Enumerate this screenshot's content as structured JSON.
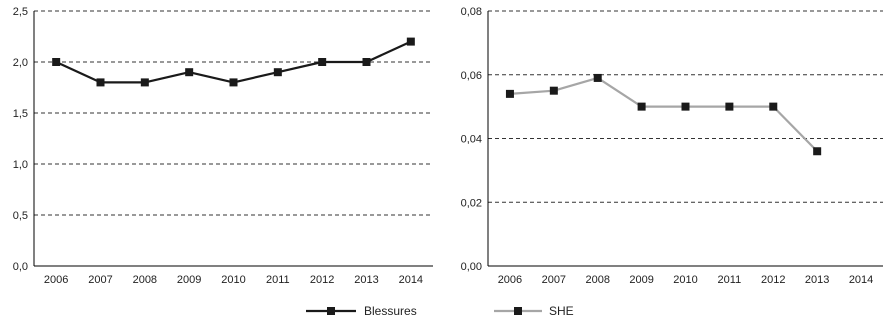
{
  "chart_data": [
    {
      "type": "line",
      "categories": [
        "2006",
        "2007",
        "2008",
        "2009",
        "2010",
        "2011",
        "2012",
        "2013",
        "2014"
      ],
      "series": [
        {
          "name": "Blessures",
          "values": [
            2.0,
            1.8,
            1.8,
            1.9,
            1.8,
            1.9,
            2.0,
            2.0,
            2.2
          ],
          "color": "#1a1a1a"
        }
      ],
      "yticks": [
        "0,0",
        "0,5",
        "1,0",
        "1,5",
        "2,0",
        "2,5"
      ],
      "ylim": [
        0,
        2.5
      ],
      "grid": "dashed horizontal",
      "legend": "bottom"
    },
    {
      "type": "line",
      "categories": [
        "2006",
        "2007",
        "2008",
        "2009",
        "2010",
        "2011",
        "2012",
        "2013",
        "2014"
      ],
      "series": [
        {
          "name": "SHE",
          "values": [
            0.054,
            0.055,
            0.059,
            0.05,
            0.05,
            0.05,
            0.05,
            0.036,
            null
          ],
          "color": "#a6a6a6"
        }
      ],
      "yticks": [
        "0,00",
        "0,02",
        "0,04",
        "0,06",
        "0,08"
      ],
      "ylim": [
        0,
        0.08
      ],
      "grid": "dashed horizontal",
      "legend": "bottom"
    }
  ],
  "colors": {
    "axis": "#000000",
    "grid": "#333333",
    "marker": "#1a1a1a"
  }
}
